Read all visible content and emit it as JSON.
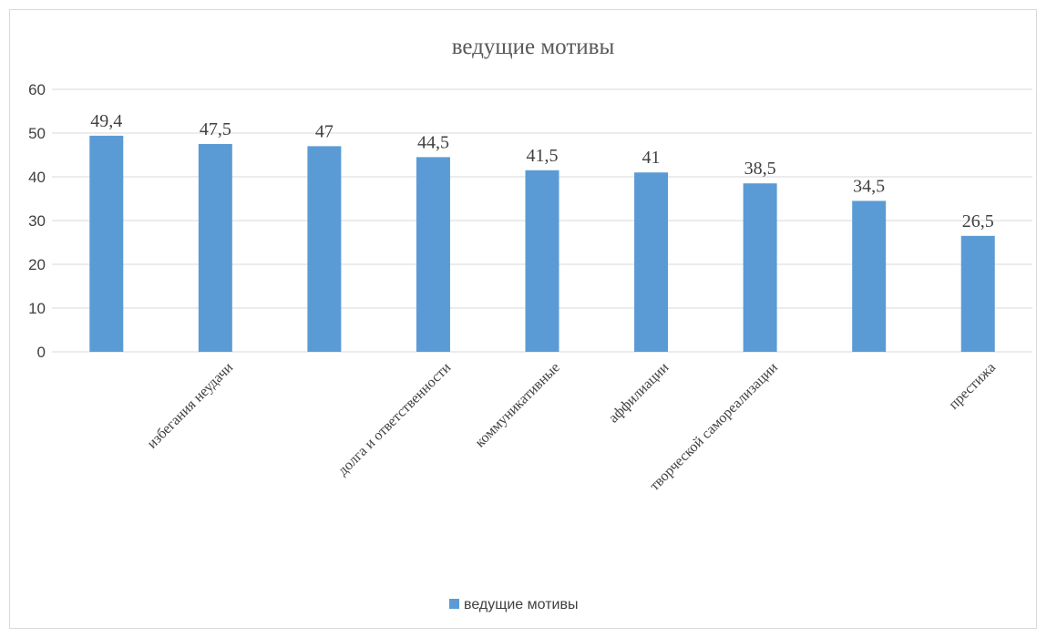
{
  "chart_data": {
    "type": "bar",
    "title": "ведущие мотивы",
    "categories": [
      "",
      "избегания неудачи",
      "",
      "долга и ответственности",
      "коммуникативные",
      "аффилиации",
      "творческой самореализации",
      "",
      "престижа"
    ],
    "series": [
      {
        "name": "ведущие мотивы",
        "values": [
          49.4,
          47.5,
          47,
          44.5,
          41.5,
          41,
          38.5,
          34.5,
          26.5
        ],
        "color": "#5b9bd5"
      }
    ],
    "data_labels": [
      "49,4",
      "47,5",
      "47",
      "44,5",
      "41,5",
      "41",
      "38,5",
      "34,5",
      "26,5"
    ],
    "y_ticks": [
      "0",
      "10",
      "20",
      "30",
      "40",
      "50",
      "60"
    ],
    "ylim": [
      0,
      60
    ],
    "xlabel": "",
    "ylabel": "",
    "grid": true,
    "legend_position": "bottom",
    "colors": {
      "bar": "#5b9bd5",
      "grid": "#d9d9d9",
      "text": "#404040"
    }
  }
}
